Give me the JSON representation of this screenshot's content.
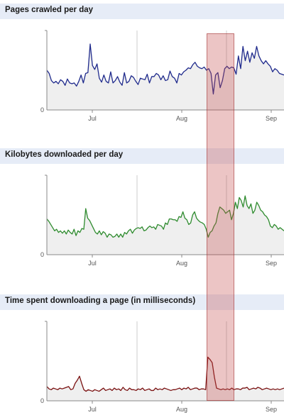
{
  "chart_data": [
    {
      "type": "area",
      "title": "Pages crawled per day",
      "xlabel": "",
      "ylabel": "",
      "x_tick_labels": [
        "Jul",
        "Aug",
        "Sep"
      ],
      "y_tick_labels": [
        "0"
      ],
      "ylim": [
        0,
        100
      ],
      "grid": true,
      "color": "#1f2a8c",
      "fill": "#efefef",
      "series": [
        {
          "values": [
            50,
            46,
            37,
            34,
            36,
            33,
            38,
            36,
            31,
            39,
            34,
            33,
            34,
            30,
            36,
            44,
            34,
            46,
            47,
            83,
            56,
            51,
            58,
            40,
            35,
            44,
            36,
            34,
            48,
            34,
            37,
            42,
            35,
            31,
            47,
            34,
            36,
            43,
            41,
            36,
            32,
            40,
            39,
            38,
            45,
            34,
            42,
            42,
            46,
            44,
            38,
            43,
            37,
            38,
            49,
            42,
            40,
            34,
            46,
            44,
            48,
            50,
            53,
            52,
            57,
            60,
            55,
            53,
            52,
            54,
            50,
            52,
            46,
            20,
            44,
            47,
            28,
            37,
            52,
            55,
            52,
            54,
            53,
            45,
            68,
            52,
            80,
            62,
            74,
            60,
            72,
            65,
            80,
            68,
            62,
            58,
            62,
            58,
            55,
            48,
            52,
            50,
            46,
            45,
            44
          ]
        }
      ]
    },
    {
      "type": "area",
      "title": "Kilobytes downloaded per day",
      "xlabel": "",
      "ylabel": "",
      "x_tick_labels": [
        "Jul",
        "Aug",
        "Sep"
      ],
      "y_tick_labels": [
        "0"
      ],
      "ylim": [
        0,
        100
      ],
      "grid": true,
      "color": "#2e8b2e",
      "fill": "#efefef",
      "series": [
        {
          "values": [
            45,
            42,
            38,
            34,
            30,
            32,
            28,
            30,
            27,
            30,
            26,
            31,
            28,
            26,
            32,
            24,
            30,
            28,
            33,
            32,
            58,
            46,
            43,
            38,
            33,
            28,
            26,
            30,
            25,
            29,
            27,
            22,
            26,
            25,
            22,
            23,
            26,
            22,
            26,
            22,
            28,
            26,
            30,
            32,
            27,
            31,
            33,
            34,
            33,
            35,
            30,
            31,
            34,
            36,
            34,
            35,
            32,
            38,
            37,
            36,
            32,
            40,
            38,
            45,
            45,
            44,
            44,
            42,
            48,
            47,
            54,
            46,
            44,
            38,
            40,
            50,
            54,
            46,
            43,
            41,
            40,
            38,
            32,
            22,
            28,
            30,
            36,
            40,
            52,
            60,
            58,
            56,
            52,
            54,
            56,
            44,
            52,
            66,
            58,
            72,
            68,
            60,
            74,
            62,
            58,
            64,
            52,
            56,
            66,
            62,
            56,
            54,
            50,
            48,
            44,
            36,
            34,
            38,
            36,
            32,
            34,
            32,
            30
          ]
        }
      ]
    },
    {
      "type": "area",
      "title": "Time spent downloading a page (in milliseconds)",
      "xlabel": "",
      "ylabel": "",
      "x_tick_labels": [
        "Jul",
        "Aug",
        "Sep"
      ],
      "y_tick_labels": [
        "0"
      ],
      "ylim": [
        0,
        100
      ],
      "grid": true,
      "color": "#7a1111",
      "fill": "#efefef",
      "series": [
        {
          "values": [
            18,
            15,
            14,
            16,
            15,
            14,
            16,
            15,
            16,
            17,
            18,
            14,
            15,
            22,
            26,
            31,
            22,
            14,
            12,
            14,
            13,
            12,
            14,
            13,
            12,
            14,
            16,
            13,
            14,
            15,
            13,
            16,
            14,
            15,
            13,
            17,
            14,
            13,
            16,
            14,
            14,
            13,
            15,
            14,
            16,
            13,
            14,
            15,
            13,
            13,
            16,
            14,
            15,
            14,
            16,
            15,
            14,
            13,
            14,
            14,
            15,
            16,
            14,
            16,
            15,
            17,
            14,
            15,
            16,
            16,
            14,
            15,
            15,
            14,
            55,
            52,
            48,
            30,
            16,
            15,
            14,
            15,
            14,
            15,
            14,
            16,
            14,
            15,
            15,
            14,
            16,
            16,
            17,
            14,
            15,
            16,
            15,
            17,
            16,
            14,
            15,
            16,
            15,
            14,
            15,
            14,
            15,
            14,
            15,
            16
          ]
        }
      ]
    }
  ]
}
